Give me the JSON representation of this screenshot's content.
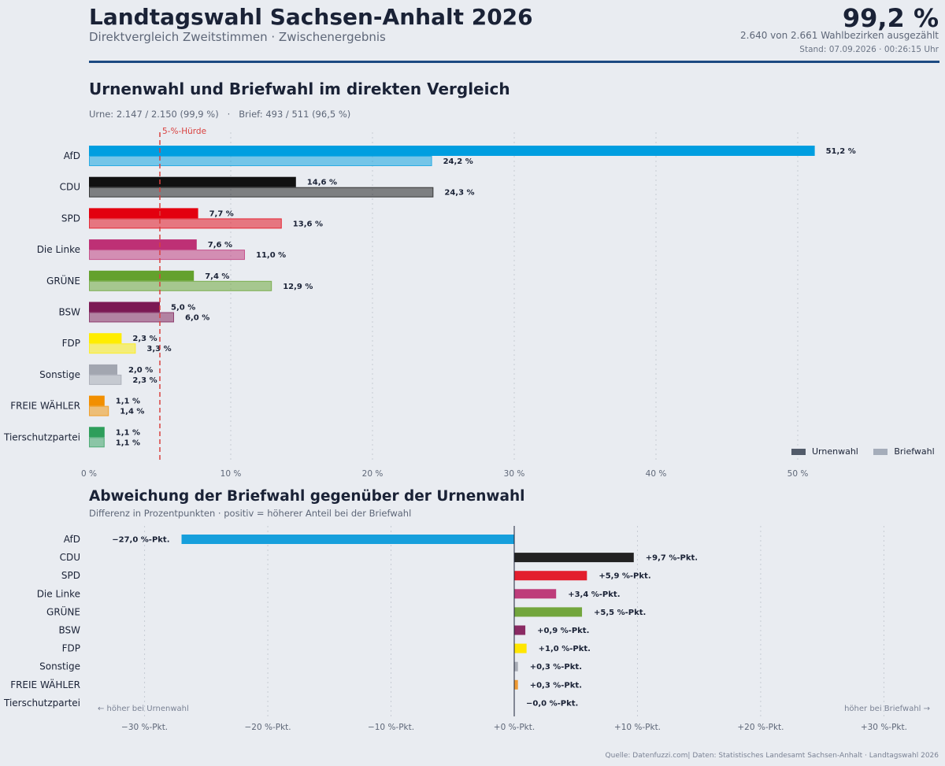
{
  "header": {
    "title": "Landtagswahl Sachsen-Anhalt 2026",
    "subtitle": "Direktvergleich Zweitstimmen · Zwischenergebnis",
    "counted_pct": "99,2 %",
    "districts": "2.640 von 2.661 Wahlbezirken ausgezählt",
    "stand": "Stand: 07.09.2026 · 00:26:15 Uhr"
  },
  "source": "Quelle: Datenfuzzi.com| Daten: Statistisches Landesamt Sachsen-Anhalt · Landtagswahl 2026",
  "colors": {
    "accent_rule": "#1c4a82",
    "threshold": "#d9413f"
  },
  "chart_data": [
    {
      "type": "bar",
      "orientation": "horizontal",
      "title": "Urnenwahl und Briefwahl im direkten Vergleich",
      "subtitle": "Urne: 2.147 / 2.150 (99,9 %)   ·   Brief: 493 / 511 (96,5 %)",
      "categories": [
        "AfD",
        "CDU",
        "SPD",
        "Die Linke",
        "GRÜNE",
        "BSW",
        "FDP",
        "Sonstige",
        "FREIE WÄHLER",
        "Tierschutzpartei"
      ],
      "series": [
        {
          "name": "Urnenwahl",
          "values": [
            51.2,
            14.6,
            7.7,
            7.6,
            7.4,
            5.0,
            2.3,
            2.0,
            1.1,
            1.1
          ],
          "labels": [
            "51,2 %",
            "14,6 %",
            "7,7 %",
            "7,6 %",
            "7,4 %",
            "5,0 %",
            "2,3 %",
            "2,0 %",
            "1,1 %",
            "1,1 %"
          ]
        },
        {
          "name": "Briefwahl",
          "values": [
            24.2,
            24.3,
            13.6,
            11.0,
            12.9,
            6.0,
            3.3,
            2.3,
            1.4,
            1.1
          ],
          "labels": [
            "24,2 %",
            "24,3 %",
            "13,6 %",
            "11,0 %",
            "12,9 %",
            "6,0 %",
            "3,3 %",
            "2,3 %",
            "1,4 %",
            "1,1 %"
          ]
        }
      ],
      "party_colors": [
        "#009ee0",
        "#111111",
        "#e3000f",
        "#be3075",
        "#64a12d",
        "#7b1a54",
        "#ffed00",
        "#a2a6b0",
        "#f28f00",
        "#2e9e5b"
      ],
      "legend_colors": {
        "Urnenwahl": "#525b6a",
        "Briefwahl": "#a5adba"
      },
      "xlim": [
        0,
        54
      ],
      "x_ticks": [
        0,
        10,
        20,
        30,
        40,
        50
      ],
      "x_tick_labels": [
        "0 %",
        "10 %",
        "20 %",
        "30 %",
        "40 %",
        "50 %"
      ],
      "threshold": {
        "value": 5,
        "label": "5-%-Hürde"
      },
      "grid": "vertical dotted",
      "legend": "bottom-right"
    },
    {
      "type": "bar",
      "orientation": "horizontal",
      "title": "Abweichung der Briefwahl gegenüber der Urnenwahl",
      "subtitle": "Differenz in Prozentpunkten · positiv = höherer Anteil bei der Briefwahl",
      "categories": [
        "AfD",
        "CDU",
        "SPD",
        "Die Linke",
        "GRÜNE",
        "BSW",
        "FDP",
        "Sonstige",
        "FREIE WÄHLER",
        "Tierschutzpartei"
      ],
      "values": [
        -27.0,
        9.7,
        5.9,
        3.4,
        5.5,
        0.9,
        1.0,
        0.3,
        0.3,
        -0.0
      ],
      "labels": [
        "−27,0 %-Pkt.",
        "+9,7 %-Pkt.",
        "+5,9 %-Pkt.",
        "+3,4 %-Pkt.",
        "+5,5 %-Pkt.",
        "+0,9 %-Pkt.",
        "+1,0 %-Pkt.",
        "+0,3 %-Pkt.",
        "+0,3 %-Pkt.",
        "−0,0 %-Pkt."
      ],
      "bar_colors": [
        "#169fdc",
        "#222222",
        "#e31e2d",
        "#be3c7a",
        "#73a63d",
        "#8a2a63",
        "#ffe600",
        "#a9adb7",
        "#ef9a33",
        "#33a064"
      ],
      "xlim": [
        -34,
        34
      ],
      "x_ticks": [
        -30,
        -20,
        -10,
        0,
        10,
        20,
        30
      ],
      "x_tick_labels": [
        "−30 %-Pkt.",
        "−20 %-Pkt.",
        "−10 %-Pkt.",
        "+0 %-Pkt.",
        "+10 %-Pkt.",
        "+20 %-Pkt.",
        "+30 %-Pkt."
      ],
      "annotation_left": "← höher bei Urnenwahl",
      "annotation_right": "höher bei Briefwahl →",
      "grid": "vertical dotted"
    }
  ]
}
